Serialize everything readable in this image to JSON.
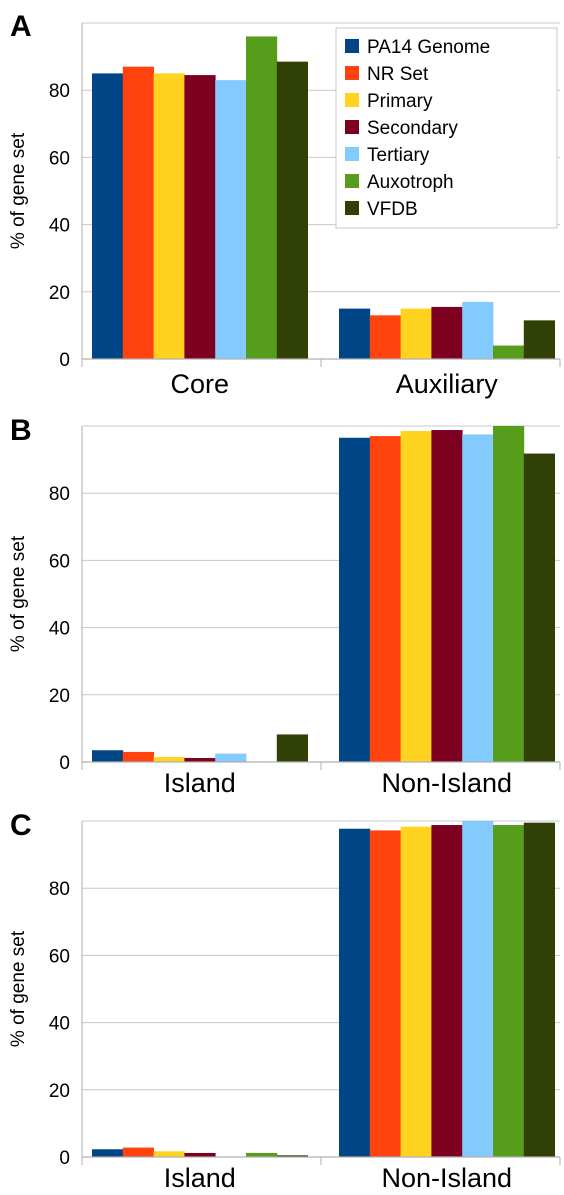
{
  "series": [
    {
      "name": "PA14 Genome",
      "color": "#004586"
    },
    {
      "name": "NR Set",
      "color": "#ff420e"
    },
    {
      "name": "Primary",
      "color": "#ffd320"
    },
    {
      "name": "Secondary",
      "color": "#7e0021"
    },
    {
      "name": "Tertiary",
      "color": "#83caff"
    },
    {
      "name": "Auxotroph",
      "color": "#579d1c"
    },
    {
      "name": "VFDB",
      "color": "#314004"
    }
  ],
  "chart_data": [
    {
      "type": "bar",
      "panel_label": "A",
      "ylabel": "% of gene set",
      "ylim": [
        0,
        100
      ],
      "yticks": [
        0,
        20,
        40,
        60,
        80
      ],
      "grid": true,
      "legend": "top-right",
      "categories": [
        "Core",
        "Auxiliary"
      ],
      "series": [
        {
          "name": "PA14 Genome",
          "values": [
            85,
            15
          ]
        },
        {
          "name": "NR Set",
          "values": [
            87,
            13
          ]
        },
        {
          "name": "Primary",
          "values": [
            85,
            15
          ]
        },
        {
          "name": "Secondary",
          "values": [
            84.5,
            15.5
          ]
        },
        {
          "name": "Tertiary",
          "values": [
            83,
            17
          ]
        },
        {
          "name": "Auxotroph",
          "values": [
            96,
            4
          ]
        },
        {
          "name": "VFDB",
          "values": [
            88.5,
            11.5
          ]
        }
      ]
    },
    {
      "type": "bar",
      "panel_label": "B",
      "ylabel": "% of gene set",
      "ylim": [
        0,
        100
      ],
      "yticks": [
        0,
        20,
        40,
        60,
        80
      ],
      "grid": true,
      "categories": [
        "Island",
        "Non-Island"
      ],
      "series": [
        {
          "name": "PA14 Genome",
          "values": [
            3.5,
            96.5
          ]
        },
        {
          "name": "NR Set",
          "values": [
            3,
            97
          ]
        },
        {
          "name": "Primary",
          "values": [
            1.5,
            98.5
          ]
        },
        {
          "name": "Secondary",
          "values": [
            1.2,
            98.8
          ]
        },
        {
          "name": "Tertiary",
          "values": [
            2.5,
            97.5
          ]
        },
        {
          "name": "Auxotroph",
          "values": [
            0,
            100
          ]
        },
        {
          "name": "VFDB",
          "values": [
            8.2,
            91.8
          ]
        }
      ]
    },
    {
      "type": "bar",
      "panel_label": "C",
      "ylabel": "% of gene set",
      "ylim": [
        0,
        100
      ],
      "yticks": [
        0,
        20,
        40,
        60,
        80
      ],
      "grid": true,
      "categories": [
        "Island",
        "Non-Island"
      ],
      "series": [
        {
          "name": "PA14 Genome",
          "values": [
            2.3,
            97.7
          ]
        },
        {
          "name": "NR Set",
          "values": [
            2.8,
            97.2
          ]
        },
        {
          "name": "Primary",
          "values": [
            1.7,
            98.3
          ]
        },
        {
          "name": "Secondary",
          "values": [
            1.2,
            98.8
          ]
        },
        {
          "name": "Tertiary",
          "values": [
            0,
            100
          ]
        },
        {
          "name": "Auxotroph",
          "values": [
            1.2,
            98.8
          ]
        },
        {
          "name": "VFDB",
          "values": [
            0.5,
            99.5
          ]
        }
      ]
    }
  ]
}
